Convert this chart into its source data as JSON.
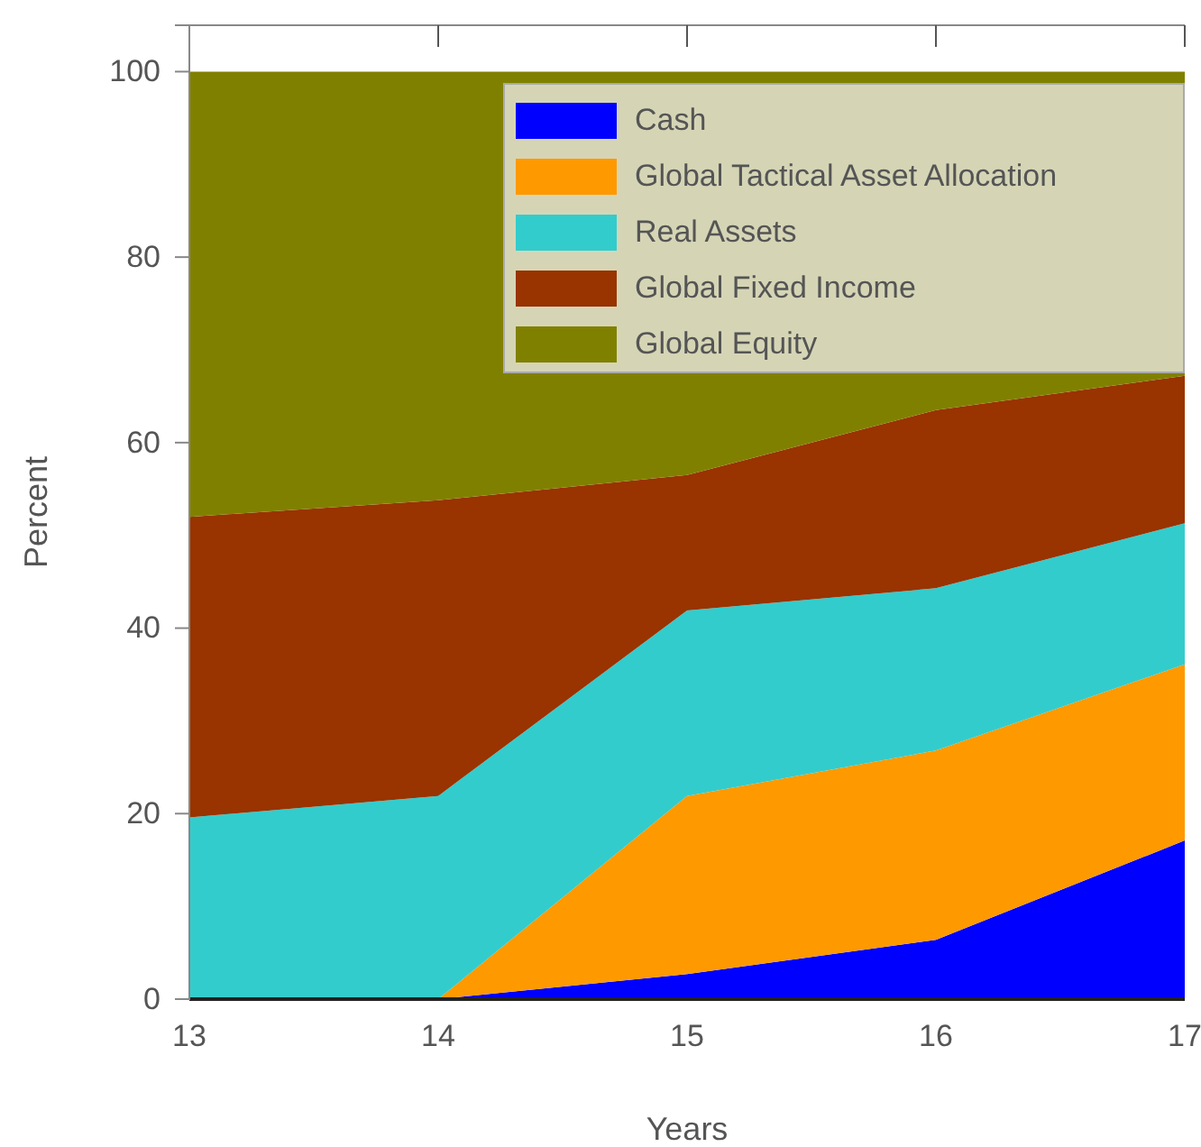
{
  "chart_data": {
    "type": "area",
    "stacked": true,
    "xlabel": "Years",
    "ylabel": "Percent",
    "x": [
      13,
      14,
      15,
      16,
      17
    ],
    "xlim": [
      13,
      17
    ],
    "xticks": [
      13,
      14,
      15,
      16,
      17
    ],
    "ylim": [
      0,
      105
    ],
    "yticks": [
      0,
      20,
      40,
      60,
      80,
      100
    ],
    "legend": "top right",
    "series": [
      {
        "name": "Cash",
        "color": "#0000ff",
        "values": [
          0,
          0,
          2.7,
          6.4,
          17.1
        ]
      },
      {
        "name": "Global Tactical Asset Allocation",
        "color": "#ff9900",
        "values": [
          0,
          0,
          19.2,
          20.4,
          19.0
        ]
      },
      {
        "name": "Real Assets",
        "color": "#33cccc",
        "values": [
          19.6,
          21.9,
          20.0,
          17.5,
          15.2
        ]
      },
      {
        "name": "Global Fixed Income",
        "color": "#993300",
        "values": [
          32.4,
          31.9,
          14.6,
          19.2,
          15.9
        ]
      },
      {
        "name": "Global Equity",
        "color": "#808000",
        "values": [
          48.0,
          46.2,
          43.5,
          36.5,
          32.8
        ]
      }
    ]
  }
}
